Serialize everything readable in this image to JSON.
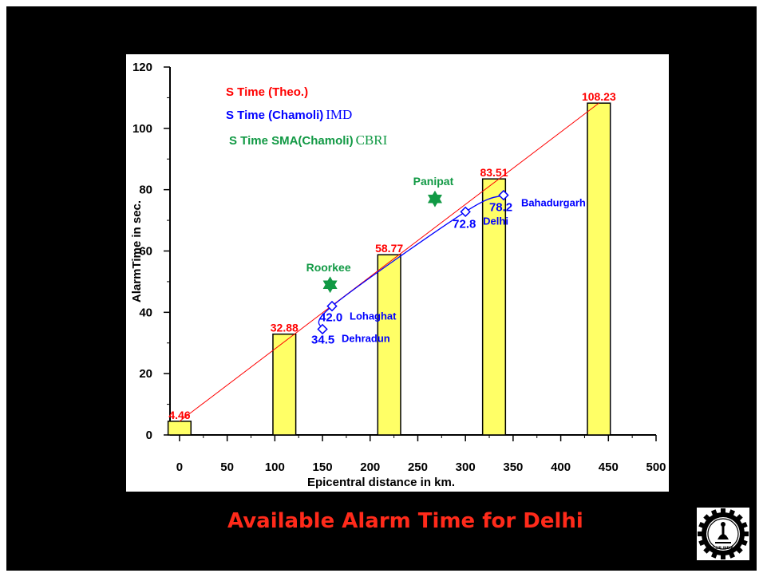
{
  "caption": "Available Alarm Time for Delhi",
  "logo": {
    "icon": "csir-gear-logo-icon",
    "text": "CSIR INDIA"
  },
  "colors": {
    "theo": "#ff0000",
    "imd": "#0000ff",
    "sma": "#119944",
    "bar_fill": "#ffff66",
    "caption": "#ff2a1a"
  },
  "chart_data": {
    "type": "bar",
    "xlabel": "Epicentral distance in km.",
    "ylabel": "AlarmTime in sec.",
    "xlim": [
      -10,
      500
    ],
    "ylim": [
      0,
      120
    ],
    "xticks": [
      "0",
      "50",
      "100",
      "150",
      "200",
      "250",
      "300",
      "350",
      "400",
      "450",
      "500"
    ],
    "yticks": [
      "0",
      "20",
      "40",
      "60",
      "80",
      "100",
      "120"
    ],
    "grid": false,
    "legend": [
      {
        "label": "S Time (Theo.)",
        "suffix": "",
        "color": "#ff0000"
      },
      {
        "label": "S Time (Chamoli)",
        "suffix": "IMD",
        "color": "#0000ff"
      },
      {
        "label": "S Time SMA(Chamoli)",
        "suffix": "CBRI",
        "color": "#119944"
      }
    ],
    "bars": [
      {
        "x": 0,
        "value": 4.46,
        "label": "4.46"
      },
      {
        "x": 110,
        "value": 32.88,
        "label": "32.88"
      },
      {
        "x": 220,
        "value": 58.77,
        "label": "58.77"
      },
      {
        "x": 330,
        "value": 83.51,
        "label": "83.51"
      },
      {
        "x": 440,
        "value": 108.23,
        "label": "108.23"
      }
    ],
    "theo_line": [
      [
        0,
        4.46
      ],
      [
        440,
        108.23
      ]
    ],
    "imd_points": [
      {
        "x": 150,
        "y": 34.5,
        "value": "34.5",
        "station": "Dehradun"
      },
      {
        "x": 160,
        "y": 42.0,
        "value": "42.0",
        "station": "Lohaghat"
      },
      {
        "x": 300,
        "y": 72.8,
        "value": "72.8",
        "station": "Delhi"
      },
      {
        "x": 340,
        "y": 78.2,
        "value": "78.2",
        "station": "Bahadurgarh"
      }
    ],
    "sma_points": [
      {
        "x": 158,
        "y": 49,
        "station": "Roorkee"
      },
      {
        "x": 268,
        "y": 77,
        "station": "Panipat"
      }
    ]
  }
}
